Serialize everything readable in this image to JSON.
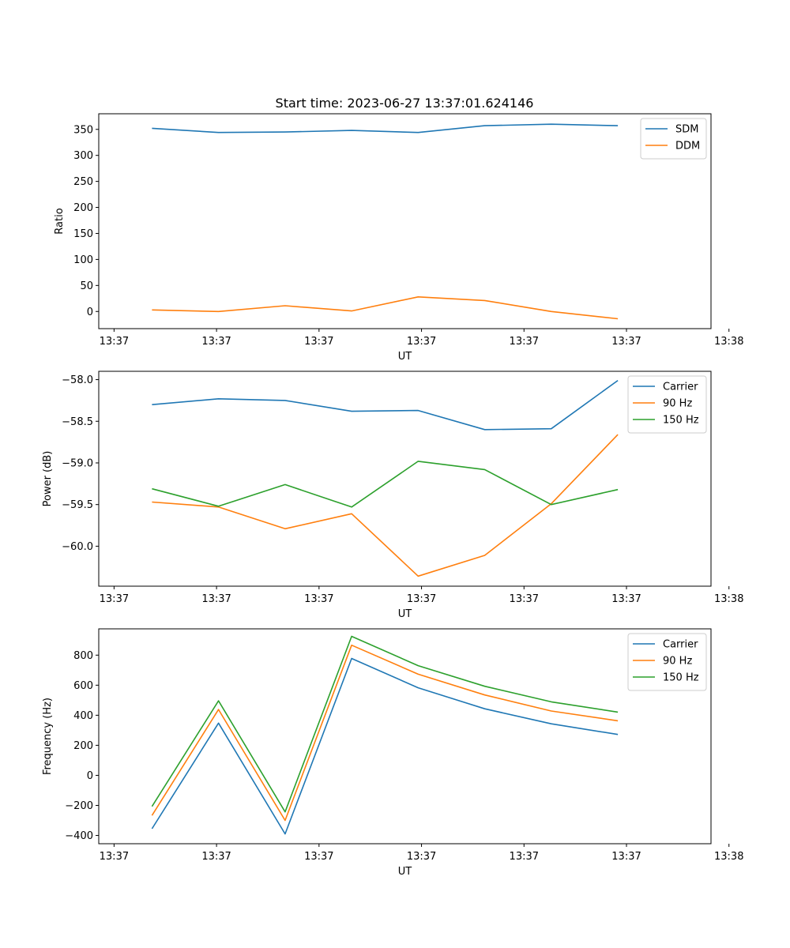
{
  "figure": {
    "title": "Start time: 2023-06-27 13:37:01.624146"
  },
  "colors": {
    "blue": "#1f77b4",
    "orange": "#ff7f0e",
    "green": "#2ca02c"
  },
  "chart_data": [
    {
      "type": "line",
      "title": "Start time: 2023-06-27 13:37:01.624146",
      "xlabel": "UT",
      "ylabel": "Ratio",
      "x_tick_labels": [
        "13:37",
        "13:37",
        "13:37",
        "13:37",
        "13:37",
        "13:37",
        "13:38"
      ],
      "x": [
        1,
        2,
        3,
        4,
        5,
        6,
        7,
        8
      ],
      "xlim": [
        0.2,
        9.4
      ],
      "ylim": [
        -33,
        380
      ],
      "yticks": [
        0,
        50,
        100,
        150,
        200,
        250,
        300,
        350
      ],
      "grid": false,
      "legend_position": "top-right",
      "series": [
        {
          "name": "SDM",
          "color": "#1f77b4",
          "values": [
            352,
            344,
            345,
            348,
            344,
            357,
            360,
            357
          ]
        },
        {
          "name": "DDM",
          "color": "#ff7f0e",
          "values": [
            3,
            0,
            11,
            1,
            28,
            21,
            0,
            -14
          ]
        }
      ]
    },
    {
      "type": "line",
      "title": "",
      "xlabel": "UT",
      "ylabel": "Power (dB)",
      "x_tick_labels": [
        "13:37",
        "13:37",
        "13:37",
        "13:37",
        "13:37",
        "13:37",
        "13:38"
      ],
      "x": [
        1,
        2,
        3,
        4,
        5,
        6,
        7,
        8
      ],
      "xlim": [
        0.2,
        9.4
      ],
      "ylim": [
        -60.48,
        -57.9
      ],
      "yticks": [
        -60.0,
        -59.5,
        -59.0,
        -58.5,
        -58.0
      ],
      "ytick_labels": [
        "−60.0",
        "−59.5",
        "−59.0",
        "−58.5",
        "−58.0"
      ],
      "grid": false,
      "legend_position": "top-right",
      "series": [
        {
          "name": "Carrier",
          "color": "#1f77b4",
          "values": [
            -58.3,
            -58.23,
            -58.25,
            -58.38,
            -58.37,
            -58.6,
            -58.59,
            -58.01
          ]
        },
        {
          "name": "90 Hz",
          "color": "#ff7f0e",
          "values": [
            -59.47,
            -59.53,
            -59.79,
            -59.61,
            -60.36,
            -60.11,
            -59.49,
            -58.66
          ]
        },
        {
          "name": "150 Hz",
          "color": "#2ca02c",
          "values": [
            -59.31,
            -59.52,
            -59.26,
            -59.53,
            -58.98,
            -59.08,
            -59.5,
            -59.32
          ]
        }
      ]
    },
    {
      "type": "line",
      "title": "",
      "xlabel": "UT",
      "ylabel": "Frequency (Hz)",
      "x_tick_labels": [
        "13:37",
        "13:37",
        "13:37",
        "13:37",
        "13:37",
        "13:37",
        "13:38"
      ],
      "x": [
        1,
        2,
        3,
        4,
        5,
        6,
        7,
        8
      ],
      "xlim": [
        0.2,
        9.4
      ],
      "ylim": [
        -455,
        975
      ],
      "yticks": [
        -400,
        -200,
        0,
        200,
        400,
        600,
        800
      ],
      "ytick_labels": [
        "−400",
        "−200",
        "0",
        "200",
        "400",
        "600",
        "800"
      ],
      "grid": false,
      "legend_position": "top-right",
      "series": [
        {
          "name": "Carrier",
          "color": "#1f77b4",
          "values": [
            -355,
            348,
            -390,
            778,
            583,
            443,
            343,
            272
          ]
        },
        {
          "name": "90 Hz",
          "color": "#ff7f0e",
          "values": [
            -267,
            438,
            -300,
            866,
            673,
            535,
            428,
            363
          ]
        },
        {
          "name": "150 Hz",
          "color": "#2ca02c",
          "values": [
            -207,
            496,
            -243,
            925,
            730,
            593,
            489,
            421
          ]
        }
      ]
    }
  ]
}
